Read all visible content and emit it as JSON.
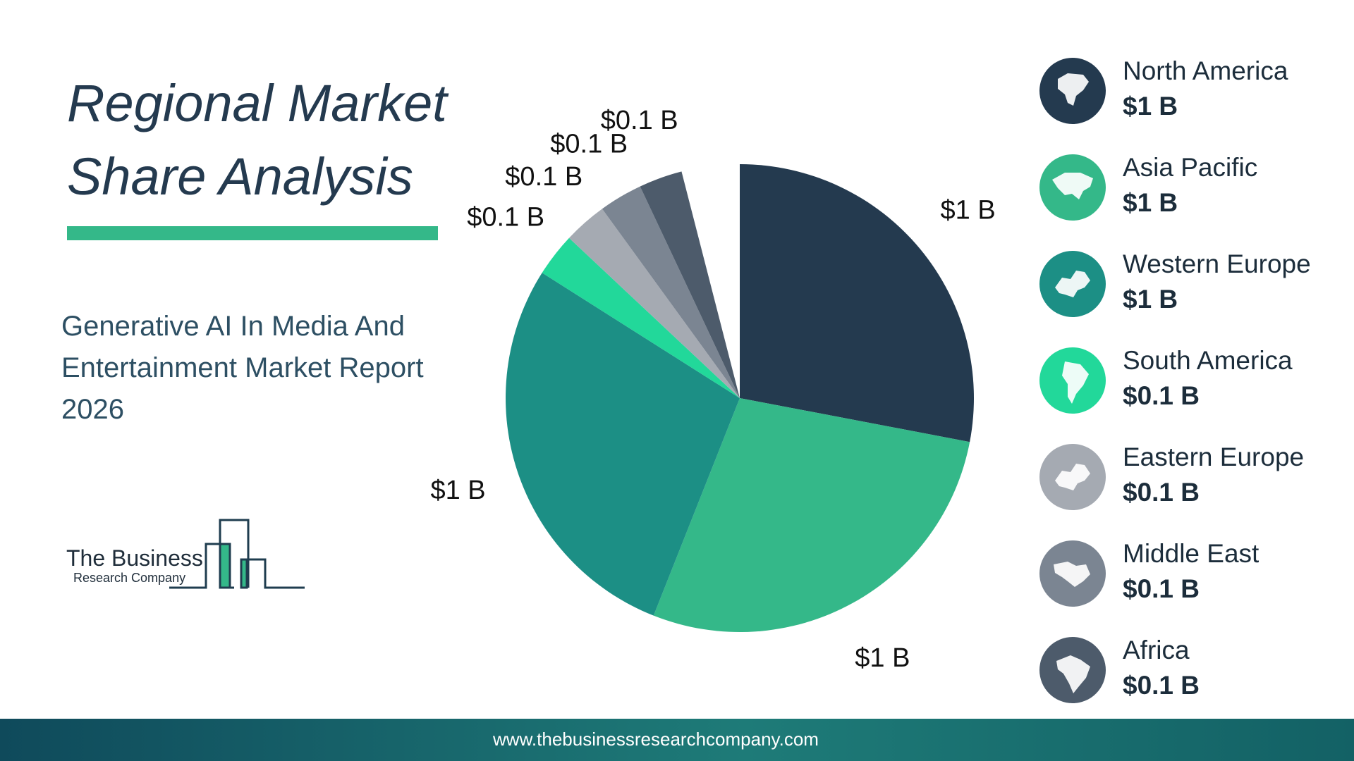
{
  "title": "Regional Market Share Analysis",
  "subtitle": "Generative AI In Media And Entertainment Market Report 2026",
  "logo": {
    "line1": "The Business",
    "line2": "Research Company"
  },
  "footer": {
    "url": "www.thebusinessresearchcompany.com"
  },
  "colors": {
    "accent": "#34b889",
    "north_america": "#243a4f",
    "asia_pacific": "#34b889",
    "western_europe": "#1c8f85",
    "south_america": "#22d89a",
    "eastern_europe": "#a5aab2",
    "middle_east": "#7b8592",
    "africa": "#4d5b6b"
  },
  "chart_data": {
    "type": "pie",
    "title": "Regional Market Share Analysis",
    "start_angle_deg": 0,
    "direction": "clockwise",
    "slices": [
      {
        "name": "North America",
        "value": 1,
        "share": 0.28,
        "label": "$1 B",
        "color": "#243a4f",
        "icon": "north-america-map-icon"
      },
      {
        "name": "Asia Pacific",
        "value": 1,
        "share": 0.28,
        "label": "$1 B",
        "color": "#34b889",
        "icon": "asia-map-icon"
      },
      {
        "name": "Western Europe",
        "value": 1,
        "share": 0.28,
        "label": "$1 B",
        "color": "#1c8f85",
        "icon": "europe-map-icon"
      },
      {
        "name": "South America",
        "value": 0.1,
        "share": 0.03,
        "label": "$0.1 B",
        "color": "#22d89a",
        "icon": "south-america-map-icon"
      },
      {
        "name": "Eastern Europe",
        "value": 0.1,
        "share": 0.03,
        "label": "$0.1 B",
        "color": "#a5aab2",
        "icon": "europe-map-icon"
      },
      {
        "name": "Middle East",
        "value": 0.1,
        "share": 0.03,
        "label": "$0.1 B",
        "color": "#7b8592",
        "icon": "middle-east-map-icon"
      },
      {
        "name": "Africa",
        "value": 0.1,
        "share": 0.03,
        "label": "$0.1 B",
        "color": "#4d5b6b",
        "icon": "africa-map-icon"
      }
    ]
  }
}
